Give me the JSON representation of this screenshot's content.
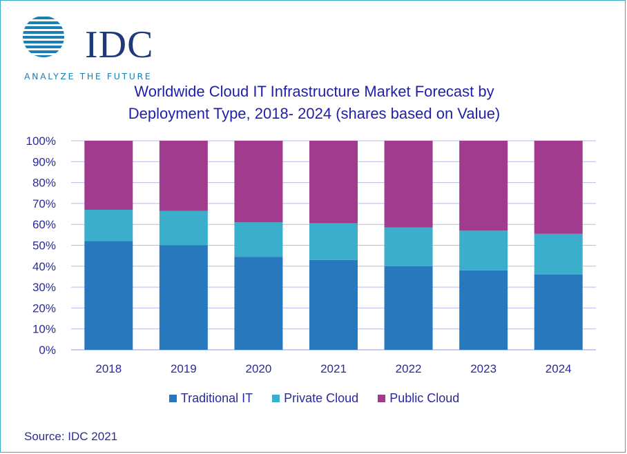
{
  "logo": {
    "text": "IDC",
    "tagline": "ANALYZE THE FUTURE"
  },
  "title_lines": [
    "Worldwide Cloud IT Infrastructure Market Forecast by",
    "Deployment Type, 2018- 2024 (shares based on Value)"
  ],
  "source": "Source: IDC 2021",
  "colors": {
    "traditional": "#2878bd",
    "private": "#3aaecb",
    "public": "#a03b8e",
    "gridline": "#b9b9e6",
    "text": "#2a2a9c"
  },
  "chart_data": {
    "type": "bar",
    "stacked": true,
    "categories": [
      "2018",
      "2019",
      "2020",
      "2021",
      "2022",
      "2023",
      "2024"
    ],
    "series": [
      {
        "name": "Traditional IT",
        "values": [
          52,
          50,
          44.5,
          43,
          40,
          38,
          36
        ]
      },
      {
        "name": "Private Cloud",
        "values": [
          15,
          16.5,
          16.5,
          17.5,
          18.5,
          19,
          19.5
        ]
      },
      {
        "name": "Public Cloud",
        "values": [
          33,
          33.5,
          39,
          39.5,
          41.5,
          43,
          44.5
        ]
      }
    ],
    "ylim": [
      0,
      100
    ],
    "yticks": [
      "0%",
      "10%",
      "20%",
      "30%",
      "40%",
      "50%",
      "60%",
      "70%",
      "80%",
      "90%",
      "100%"
    ],
    "grid": true,
    "legend_position": "bottom"
  }
}
